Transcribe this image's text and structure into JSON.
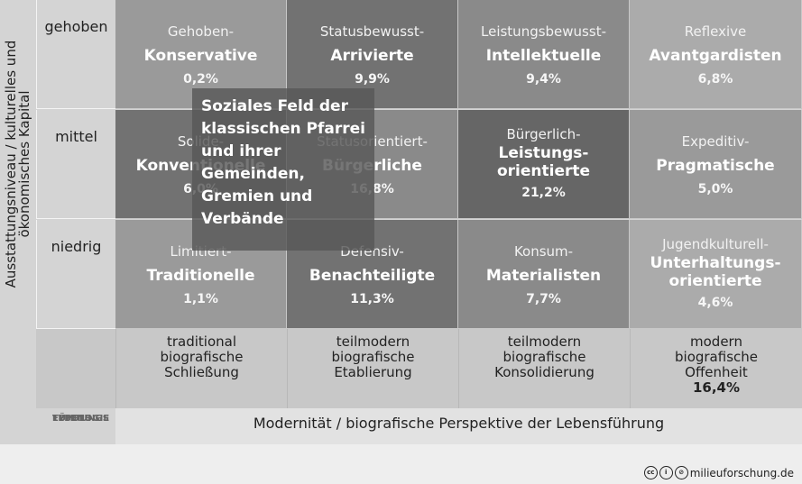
{
  "y_axis": {
    "line1": "Ausstattungsniveau / kulturelles und",
    "line2": "ökonomisches Kapital"
  },
  "rows": [
    "gehoben",
    "mittel",
    "niedrig"
  ],
  "cells": [
    [
      {
        "l1": "Gehoben-",
        "l2": "Konservative",
        "pct": "0,2%",
        "bg": "#9a9a9a"
      },
      {
        "l1": "Statusbewusst-",
        "l2": "Arrivierte",
        "pct": "9,9%",
        "bg": "#727272"
      },
      {
        "l1": "Leistungsbewusst-",
        "l2": "Intellektuelle",
        "pct": "9,4%",
        "bg": "#8a8a8a"
      },
      {
        "l1": "Reflexive",
        "l2": "Avantgardisten",
        "pct": "6,8%",
        "bg": "#ababab"
      }
    ],
    [
      {
        "l1": "Solide-",
        "l2": "Konventionelle",
        "pct": "6,0%",
        "bg": "#727272"
      },
      {
        "l1": "Statusorientiert-",
        "l2": "Bürgerliche",
        "pct": "16,8%",
        "bg": "#8a8a8a"
      },
      {
        "l1": "Bürgerlich-",
        "l2": "Leistungs-\norientierte",
        "pct": "21,2%",
        "bg": "#666666",
        "tall": true
      },
      {
        "l1": "Expeditiv-",
        "l2": "Pragmatische",
        "pct": "5,0%",
        "bg": "#9a9a9a"
      }
    ],
    [
      {
        "l1": "Limitiert-",
        "l2": "Traditionelle",
        "pct": "1,1%",
        "bg": "#9a9a9a"
      },
      {
        "l1": "Defensiv-",
        "l2": "Benachteiligte",
        "pct": "11,3%",
        "bg": "#727272"
      },
      {
        "l1": "Konsum-",
        "l2": "Materialisten",
        "pct": "7,7%",
        "bg": "#8a8a8a"
      },
      {
        "l1": "Jugendkulturell-",
        "l2": "Unterhaltungs-\norientierte",
        "pct": "4,6%",
        "bg": "#ababab",
        "tall": true
      }
    ]
  ],
  "lf_label": {
    "l1": "LEBENS",
    "l2": "FÜHRUNGS",
    "l3": "TYPOLOGIE"
  },
  "bottom": [
    {
      "l1": "traditional",
      "l2": "biografische",
      "l3": "Schließung"
    },
    {
      "l1": "teilmodern",
      "l2": "biografische",
      "l3": "Etablierung"
    },
    {
      "l1": "teilmodern",
      "l2": "biografische",
      "l3": "Konsolidierung"
    },
    {
      "l1": "modern",
      "l2": "biografische",
      "l3": "Offenheit",
      "pct": "16,4%"
    }
  ],
  "x_axis": "Modernität / biografische Perspektive der Lebensführung",
  "overlay": [
    "Soziales Feld der",
    "klassischen Pfarrei",
    "und ihrer",
    "Gemeinden,",
    "Gremien und",
    "Verbände"
  ],
  "credit": "milieuforschung.de"
}
